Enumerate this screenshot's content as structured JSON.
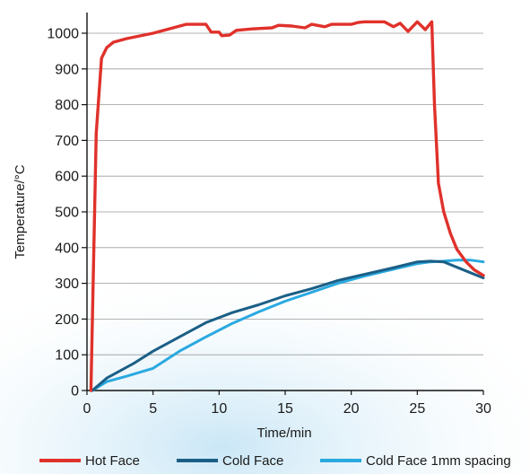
{
  "chart_data": {
    "type": "line",
    "title": "",
    "xlabel": "Time/min",
    "ylabel": "Temperature/°C",
    "xlim": [
      0,
      30
    ],
    "ylim": [
      0,
      1100
    ],
    "x_ticks": [
      0,
      5,
      10,
      15,
      20,
      25,
      30
    ],
    "y_ticks": [
      0,
      100,
      200,
      300,
      400,
      500,
      600,
      700,
      800,
      900,
      1000
    ],
    "grid": "horizontal",
    "legend": "bottom",
    "series": [
      {
        "name": "Hot Face",
        "color": "#e0312b",
        "points": [
          [
            0.3,
            0
          ],
          [
            0.7,
            720
          ],
          [
            1.1,
            930
          ],
          [
            1.5,
            960
          ],
          [
            2,
            975
          ],
          [
            3,
            985
          ],
          [
            5,
            1000
          ],
          [
            7.5,
            1025
          ],
          [
            9,
            1025
          ],
          [
            9.4,
            1003
          ],
          [
            10,
            1003
          ],
          [
            10.2,
            993
          ],
          [
            10.8,
            995
          ],
          [
            11.3,
            1008
          ],
          [
            12.5,
            1012
          ],
          [
            14,
            1015
          ],
          [
            14.5,
            1022
          ],
          [
            15.5,
            1020
          ],
          [
            16.5,
            1015
          ],
          [
            17,
            1025
          ],
          [
            18,
            1018
          ],
          [
            18.5,
            1025
          ],
          [
            20,
            1025
          ],
          [
            20.5,
            1030
          ],
          [
            21,
            1032
          ],
          [
            22.5,
            1032
          ],
          [
            23.2,
            1018
          ],
          [
            23.7,
            1028
          ],
          [
            24.3,
            1005
          ],
          [
            25,
            1032
          ],
          [
            25.6,
            1010
          ],
          [
            26.1,
            1032
          ],
          [
            26.3,
            800
          ],
          [
            26.6,
            580
          ],
          [
            27,
            500
          ],
          [
            27.5,
            440
          ],
          [
            28,
            395
          ],
          [
            28.7,
            360
          ],
          [
            29.3,
            338
          ],
          [
            30,
            322
          ]
        ]
      },
      {
        "name": "Cold Face",
        "color": "#1b5f86",
        "points": [
          [
            0.4,
            0
          ],
          [
            1.5,
            35
          ],
          [
            3.5,
            75
          ],
          [
            5,
            110
          ],
          [
            7,
            150
          ],
          [
            9,
            190
          ],
          [
            11,
            218
          ],
          [
            13,
            240
          ],
          [
            15,
            265
          ],
          [
            17,
            285
          ],
          [
            19,
            308
          ],
          [
            21,
            325
          ],
          [
            23,
            342
          ],
          [
            25,
            360
          ],
          [
            26,
            362
          ],
          [
            27,
            360
          ],
          [
            28,
            345
          ],
          [
            29,
            330
          ],
          [
            30,
            315
          ]
        ]
      },
      {
        "name": "Cold Face 1mm spacing",
        "color": "#2aa9e0",
        "points": [
          [
            0.4,
            0
          ],
          [
            1.5,
            25
          ],
          [
            3,
            40
          ],
          [
            5,
            62
          ],
          [
            7,
            110
          ],
          [
            9,
            150
          ],
          [
            11,
            188
          ],
          [
            13,
            220
          ],
          [
            15,
            250
          ],
          [
            17,
            275
          ],
          [
            19,
            300
          ],
          [
            21,
            320
          ],
          [
            23,
            338
          ],
          [
            25,
            355
          ],
          [
            26,
            360
          ],
          [
            27,
            362
          ],
          [
            28,
            365
          ],
          [
            29,
            365
          ],
          [
            30,
            360
          ]
        ]
      }
    ]
  }
}
